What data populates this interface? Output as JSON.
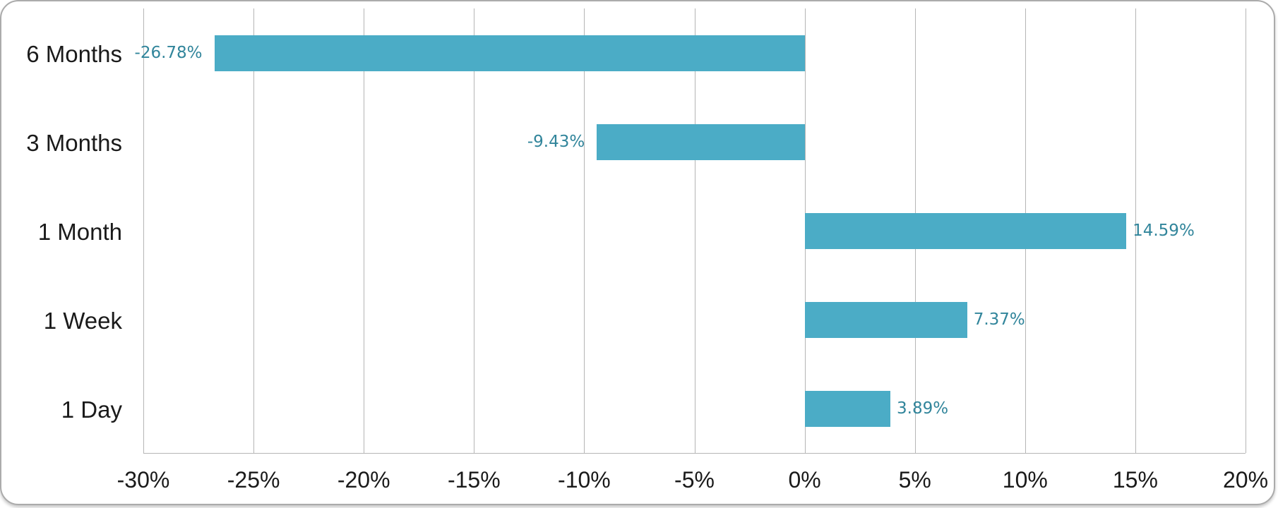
{
  "chart_data": {
    "type": "bar",
    "orientation": "horizontal",
    "categories": [
      "6 Months",
      "3 Months",
      "1 Month",
      "1 Week",
      "1 Day"
    ],
    "values": [
      -26.78,
      -9.43,
      14.59,
      7.37,
      3.89
    ],
    "data_labels": [
      "-26.78%",
      "-9.43%",
      "14.59%",
      "7.37%",
      "3.89%"
    ],
    "x_tick_values": [
      -30,
      -25,
      -20,
      -15,
      -10,
      -5,
      0,
      5,
      10,
      15,
      20
    ],
    "x_tick_labels": [
      "-30%",
      "-25%",
      "-20%",
      "-15%",
      "-10%",
      "-5%",
      "0%",
      "5%",
      "10%",
      "15%",
      "20%"
    ],
    "xlim": [
      -30,
      20
    ],
    "grid": true,
    "legend": false,
    "title": "",
    "xlabel": "",
    "ylabel": "",
    "bar_color": "#4BACC6",
    "data_label_color": "#31859B",
    "axis_text_color": "#1a1a1a",
    "gridline_color": "#b5b5b5"
  }
}
